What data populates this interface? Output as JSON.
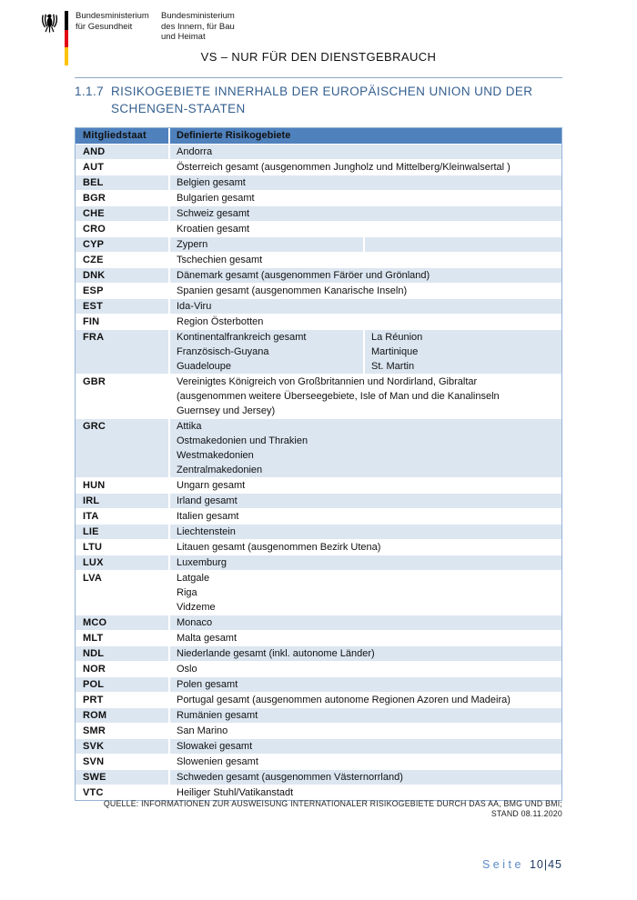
{
  "header": {
    "ministry_health": "Bundesministerium\nfür Gesundheit",
    "ministry_interior": "Bundesministerium\ndes Innern, für Bau\nund Heimat",
    "classification": "VS – NUR FÜR DEN DIENSTGEBRAUCH"
  },
  "icons": {
    "federal_eagle": "federal-eagle-icon (black Bundesadler emblem)",
    "flag_stripe": "black-red-gold vertical flag bar"
  },
  "heading": {
    "number": "1.1.7",
    "title": "RISIKOGEBIETE INNERHALB DER EUROPÄISCHEN UNION UND DER SCHENGEN-STAATEN"
  },
  "table": {
    "columns": [
      "Mitgliedstaat",
      "Definierte Risikogebiete"
    ],
    "rows": [
      {
        "code": "AND",
        "areas": [
          [
            "Andorra"
          ]
        ]
      },
      {
        "code": "AUT",
        "areas": [
          [
            "Österreich gesamt (ausgenommen Jungholz und Mittelberg/Kleinwalsertal )"
          ]
        ]
      },
      {
        "code": "BEL",
        "areas": [
          [
            "Belgien gesamt"
          ]
        ]
      },
      {
        "code": "BGR",
        "areas": [
          [
            "Bulgarien gesamt"
          ]
        ]
      },
      {
        "code": "CHE",
        "areas": [
          [
            "Schweiz gesamt"
          ]
        ]
      },
      {
        "code": "CRO",
        "areas": [
          [
            "Kroatien gesamt"
          ]
        ]
      },
      {
        "code": "CYP",
        "areas": [
          [
            "Zypern"
          ],
          [
            ""
          ]
        ]
      },
      {
        "code": "CZE",
        "areas": [
          [
            "Tschechien gesamt"
          ]
        ]
      },
      {
        "code": "DNK",
        "areas": [
          [
            "Dänemark gesamt (ausgenommen Färöer und Grönland)"
          ]
        ]
      },
      {
        "code": "ESP",
        "areas": [
          [
            "Spanien gesamt (ausgenommen Kanarische Inseln)"
          ]
        ]
      },
      {
        "code": "EST",
        "areas": [
          [
            "Ida-Viru"
          ]
        ]
      },
      {
        "code": "FIN",
        "areas": [
          [
            "Region Österbotten"
          ]
        ]
      },
      {
        "code": "FRA",
        "areas": [
          [
            "Kontinentalfrankreich gesamt",
            "Französisch-Guyana",
            "Guadeloupe"
          ],
          [
            "La Réunion",
            "Martinique",
            "St. Martin"
          ]
        ]
      },
      {
        "code": "GBR",
        "areas": [
          [
            "Vereinigtes Königreich von Großbritannien und Nordirland, Gibraltar",
            "(ausgenommen weitere Überseegebiete, Isle of Man und die Kanalinseln",
            "Guernsey und Jersey)"
          ]
        ]
      },
      {
        "code": "GRC",
        "areas": [
          [
            "Attika",
            "Ostmakedonien und Thrakien",
            "Westmakedonien",
            "Zentralmakedonien"
          ]
        ]
      },
      {
        "code": "HUN",
        "areas": [
          [
            "Ungarn gesamt"
          ]
        ]
      },
      {
        "code": "IRL",
        "areas": [
          [
            "Irland gesamt"
          ]
        ]
      },
      {
        "code": "ITA",
        "areas": [
          [
            "Italien gesamt"
          ]
        ]
      },
      {
        "code": "LIE",
        "areas": [
          [
            "Liechtenstein"
          ]
        ]
      },
      {
        "code": "LTU",
        "areas": [
          [
            "Litauen gesamt (ausgenommen Bezirk Utena)"
          ]
        ]
      },
      {
        "code": "LUX",
        "areas": [
          [
            "Luxemburg"
          ]
        ]
      },
      {
        "code": "LVA",
        "areas": [
          [
            "Latgale",
            "Riga",
            "Vidzeme"
          ]
        ]
      },
      {
        "code": "MCO",
        "areas": [
          [
            "Monaco"
          ]
        ]
      },
      {
        "code": "MLT",
        "areas": [
          [
            "Malta gesamt"
          ]
        ]
      },
      {
        "code": "NDL",
        "areas": [
          [
            "Niederlande gesamt (inkl. autonome Länder)"
          ]
        ]
      },
      {
        "code": "NOR",
        "areas": [
          [
            "Oslo"
          ]
        ]
      },
      {
        "code": "POL",
        "areas": [
          [
            "Polen gesamt"
          ]
        ]
      },
      {
        "code": "PRT",
        "areas": [
          [
            "Portugal gesamt (ausgenommen autonome Regionen Azoren und Madeira)"
          ]
        ]
      },
      {
        "code": "ROM",
        "areas": [
          [
            "Rumänien gesamt"
          ]
        ]
      },
      {
        "code": "SMR",
        "areas": [
          [
            "San Marino"
          ]
        ]
      },
      {
        "code": "SVK",
        "areas": [
          [
            "Slowakei gesamt"
          ]
        ]
      },
      {
        "code": "SVN",
        "areas": [
          [
            "Slowenien gesamt"
          ]
        ]
      },
      {
        "code": "SWE",
        "areas": [
          [
            "Schweden gesamt (ausgenommen Västernorrland)"
          ]
        ]
      },
      {
        "code": "VTC",
        "areas": [
          [
            "Heiliger Stuhl/Vatikanstadt"
          ]
        ]
      }
    ]
  },
  "source_note": "QUELLE: INFORMATIONEN ZUR AUSWEISUNG INTERNATIONALER RISIKOGEBIETE DURCH DAS AA, BMG UND BMI;\nSTAND 08.11.2020",
  "footer": {
    "label": "Seite",
    "page": "10|45"
  },
  "colors": {
    "table_header_bg": "#4F81BD",
    "table_row_shade": "#DCE6F1",
    "table_border": "#95B3D7",
    "heading_text": "#366091",
    "footer_label": "#5B8AC5",
    "footer_page": "#1F3A63",
    "flag_black": "#000000",
    "flag_red": "#E30613",
    "flag_gold": "#FDC300"
  }
}
